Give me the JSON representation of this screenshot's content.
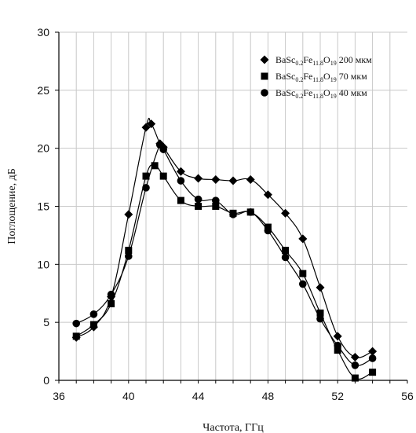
{
  "chart_data": {
    "type": "line",
    "xlabel": "Частота, ГГц",
    "ylabel": "Поглощение, дБ",
    "xlim": [
      36,
      56
    ],
    "ylim": [
      0,
      30
    ],
    "xticks": [
      "36",
      "40",
      "44",
      "48",
      "52",
      "56"
    ],
    "yticks": [
      "0",
      "5",
      "10",
      "15",
      "20",
      "25",
      "30"
    ],
    "grid": true,
    "legend_position": "top-right",
    "series": [
      {
        "name": "BaSc0.2Fe11.8O19 200 мкм",
        "name_parts": {
          "base": "BaSc",
          "s1": "0.2",
          "mid": "Fe",
          "s2": "11.8",
          "o": "O",
          "s3": "19",
          "suffix": " 200 мкм"
        },
        "marker": "diamond",
        "x": [
          37,
          38,
          39,
          40,
          41,
          41.3,
          41.8,
          42,
          43,
          44,
          45,
          46,
          47,
          48,
          49,
          50,
          51,
          52,
          53,
          54
        ],
        "y": [
          3.7,
          4.6,
          7.2,
          14.3,
          21.8,
          22.1,
          20.4,
          20.1,
          18.0,
          17.4,
          17.3,
          17.2,
          17.3,
          16.0,
          14.4,
          12.2,
          8.0,
          3.8,
          2.0,
          2.5
        ]
      },
      {
        "name": "BaSc0.2Fe11.8O19 70 мкм",
        "name_parts": {
          "base": "BaSc",
          "s1": "0.2",
          "mid": "Fe",
          "s2": "11.8",
          "o": "O",
          "s3": "19",
          "suffix": " 70 мкм"
        },
        "marker": "square",
        "x": [
          37,
          38,
          39,
          40,
          41,
          41.5,
          42,
          43,
          44,
          45,
          46,
          47,
          48,
          49,
          50,
          51,
          52,
          53,
          54
        ],
        "y": [
          3.8,
          4.8,
          6.6,
          11.2,
          17.6,
          18.5,
          17.6,
          15.5,
          15.0,
          15.0,
          14.4,
          14.5,
          13.2,
          11.2,
          9.2,
          5.8,
          2.6,
          0.2,
          0.7
        ]
      },
      {
        "name": "BaSc0.2Fe11.8O19 40 мкм",
        "name_parts": {
          "base": "BaSc",
          "s1": "0.2",
          "mid": "Fe",
          "s2": "11.8",
          "o": "O",
          "s3": "19",
          "suffix": " 40 мкм"
        },
        "marker": "circle",
        "x": [
          37,
          38,
          39,
          40,
          41,
          41.8,
          42,
          43,
          44,
          45,
          46,
          47,
          48,
          49,
          50,
          51,
          52,
          53,
          54
        ],
        "y": [
          4.9,
          5.7,
          7.4,
          10.7,
          16.6,
          20.3,
          19.9,
          17.2,
          15.6,
          15.5,
          14.3,
          14.5,
          12.9,
          10.6,
          8.3,
          5.3,
          3.0,
          1.3,
          1.9
        ]
      }
    ]
  }
}
